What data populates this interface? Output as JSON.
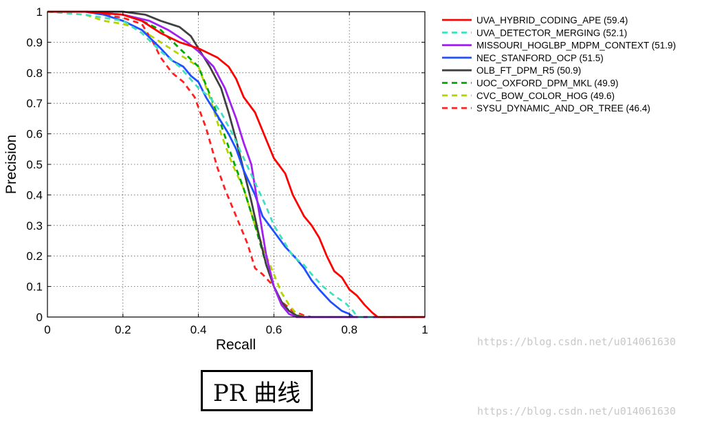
{
  "caption": "PR 曲线",
  "watermarks": [
    "https://blog.csdn.net/u014061630",
    "https://blog.csdn.net/u014061630"
  ],
  "chart_data": {
    "type": "line",
    "title": "",
    "xlabel": "Recall",
    "ylabel": "Precision",
    "xlim": [
      0,
      1
    ],
    "ylim": [
      0,
      1
    ],
    "xticks": [
      "0",
      "0.2",
      "0.4",
      "0.6",
      "0.8",
      "1"
    ],
    "yticks": [
      "0",
      "0.1",
      "0.2",
      "0.3",
      "0.4",
      "0.5",
      "0.6",
      "0.7",
      "0.8",
      "0.9",
      "1"
    ],
    "grid": true,
    "legend_position": "outside-right",
    "series": [
      {
        "name": "UVA_HYBRID_CODING_APE (59.4)",
        "color": "#ff0000",
        "style": "solid",
        "x": [
          0,
          0.1,
          0.2,
          0.25,
          0.3,
          0.35,
          0.4,
          0.45,
          0.48,
          0.5,
          0.52,
          0.55,
          0.58,
          0.6,
          0.63,
          0.65,
          0.68,
          0.7,
          0.72,
          0.74,
          0.76,
          0.78,
          0.8,
          0.82,
          0.84,
          0.86,
          0.875,
          1.0
        ],
        "y": [
          1,
          1,
          0.99,
          0.97,
          0.93,
          0.9,
          0.88,
          0.85,
          0.82,
          0.78,
          0.72,
          0.67,
          0.58,
          0.52,
          0.47,
          0.4,
          0.33,
          0.3,
          0.26,
          0.2,
          0.15,
          0.13,
          0.09,
          0.07,
          0.04,
          0.015,
          0,
          0
        ]
      },
      {
        "name": "UVA_DETECTOR_MERGING (52.1)",
        "color": "#40e0c0",
        "style": "dashed",
        "x": [
          0,
          0.1,
          0.2,
          0.25,
          0.3,
          0.35,
          0.4,
          0.43,
          0.46,
          0.49,
          0.52,
          0.55,
          0.58,
          0.6,
          0.62,
          0.65,
          0.68,
          0.7,
          0.73,
          0.76,
          0.79,
          0.81,
          0.82,
          1.0
        ],
        "y": [
          1,
          0.99,
          0.97,
          0.93,
          0.87,
          0.82,
          0.75,
          0.72,
          0.67,
          0.6,
          0.52,
          0.44,
          0.36,
          0.3,
          0.26,
          0.2,
          0.17,
          0.14,
          0.1,
          0.07,
          0.045,
          0.02,
          0,
          0
        ]
      },
      {
        "name": "MISSOURI_HOGLBP_MDPM_CONTEXT (51.9)",
        "color": "#a020f0",
        "style": "solid",
        "x": [
          0,
          0.1,
          0.2,
          0.27,
          0.32,
          0.37,
          0.4,
          0.44,
          0.47,
          0.5,
          0.52,
          0.54,
          0.56,
          0.58,
          0.6,
          0.62,
          0.64,
          0.66,
          0.7,
          1.0
        ],
        "y": [
          1,
          1,
          0.99,
          0.97,
          0.94,
          0.9,
          0.87,
          0.82,
          0.75,
          0.65,
          0.57,
          0.5,
          0.35,
          0.2,
          0.1,
          0.04,
          0.01,
          0,
          0,
          0
        ]
      },
      {
        "name": "NEC_STANFORD_OCP (51.5)",
        "color": "#1f4fff",
        "style": "solid",
        "x": [
          0,
          0.05,
          0.1,
          0.15,
          0.2,
          0.25,
          0.3,
          0.33,
          0.36,
          0.38,
          0.4,
          0.42,
          0.45,
          0.48,
          0.5,
          0.52,
          0.55,
          0.57,
          0.6,
          0.63,
          0.66,
          0.68,
          0.7,
          0.72,
          0.75,
          0.78,
          0.8,
          0.81,
          1.0
        ],
        "y": [
          1,
          1,
          1,
          0.99,
          0.97,
          0.94,
          0.88,
          0.84,
          0.82,
          0.79,
          0.77,
          0.72,
          0.66,
          0.6,
          0.55,
          0.48,
          0.4,
          0.33,
          0.28,
          0.23,
          0.19,
          0.16,
          0.12,
          0.09,
          0.05,
          0.02,
          0.01,
          0,
          0
        ]
      },
      {
        "name": "OLB_FT_DPM_R5 (50.9)",
        "color": "#404040",
        "style": "solid",
        "x": [
          0,
          0.1,
          0.2,
          0.26,
          0.3,
          0.35,
          0.38,
          0.4,
          0.43,
          0.46,
          0.48,
          0.5,
          0.52,
          0.54,
          0.56,
          0.58,
          0.6,
          0.62,
          0.64,
          0.66,
          0.68,
          1.0
        ],
        "y": [
          1,
          1,
          1,
          0.99,
          0.97,
          0.95,
          0.92,
          0.88,
          0.82,
          0.75,
          0.67,
          0.58,
          0.48,
          0.38,
          0.27,
          0.17,
          0.1,
          0.05,
          0.02,
          0.005,
          0,
          0
        ]
      },
      {
        "name": "UOC_OXFORD_DPM_MKL (49.9)",
        "color": "#00aa00",
        "style": "dashed",
        "x": [
          0,
          0.1,
          0.2,
          0.25,
          0.3,
          0.35,
          0.4,
          0.43,
          0.46,
          0.49,
          0.52,
          0.55,
          0.58,
          0.6,
          0.62,
          0.64,
          0.66,
          0.68,
          1.0
        ],
        "y": [
          1,
          1,
          0.99,
          0.97,
          0.94,
          0.88,
          0.82,
          0.73,
          0.63,
          0.52,
          0.42,
          0.3,
          0.17,
          0.1,
          0.05,
          0.02,
          0.005,
          0,
          0
        ]
      },
      {
        "name": "CVC_BOW_COLOR_HOG (49.6)",
        "color": "#b5d400",
        "style": "dashed",
        "x": [
          0,
          0.1,
          0.15,
          0.2,
          0.25,
          0.3,
          0.35,
          0.4,
          0.43,
          0.46,
          0.49,
          0.52,
          0.55,
          0.58,
          0.6,
          0.62,
          0.64,
          0.66,
          0.68,
          1.0
        ],
        "y": [
          1,
          0.99,
          0.97,
          0.96,
          0.94,
          0.9,
          0.86,
          0.82,
          0.72,
          0.6,
          0.5,
          0.42,
          0.3,
          0.2,
          0.14,
          0.08,
          0.04,
          0.01,
          0,
          0
        ]
      },
      {
        "name": "SYSU_DYNAMIC_AND_OR_TREE (46.4)",
        "color": "#ff2020",
        "style": "dashed",
        "x": [
          0,
          0.1,
          0.2,
          0.25,
          0.28,
          0.3,
          0.33,
          0.36,
          0.39,
          0.42,
          0.45,
          0.47,
          0.5,
          0.53,
          0.55,
          0.57,
          0.6,
          0.62,
          0.65,
          0.68,
          0.7,
          1.0
        ],
        "y": [
          1,
          1,
          0.98,
          0.96,
          0.9,
          0.85,
          0.8,
          0.77,
          0.72,
          0.62,
          0.49,
          0.42,
          0.33,
          0.24,
          0.16,
          0.14,
          0.1,
          0.05,
          0.02,
          0.005,
          0,
          0
        ]
      }
    ]
  }
}
